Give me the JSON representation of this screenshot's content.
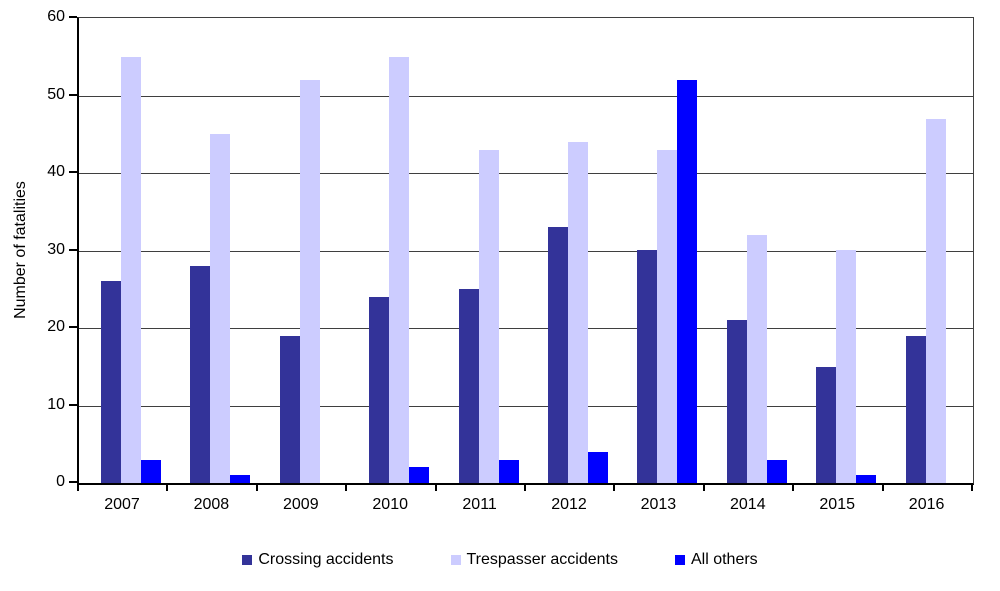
{
  "chart_data": {
    "type": "bar",
    "title": "",
    "xlabel": "",
    "ylabel": "Number of fatalities",
    "ylim": [
      0,
      60
    ],
    "yticks": [
      0,
      10,
      20,
      30,
      40,
      50,
      60
    ],
    "grid": true,
    "legend_position": "bottom",
    "categories": [
      "2007",
      "2008",
      "2009",
      "2010",
      "2011",
      "2012",
      "2013",
      "2014",
      "2015",
      "2016"
    ],
    "series": [
      {
        "name": "Crossing accidents",
        "color": "#333399",
        "values": [
          26,
          28,
          19,
          24,
          25,
          33,
          30,
          21,
          15,
          19
        ]
      },
      {
        "name": "Trespasser accidents",
        "color": "#ccccff",
        "values": [
          55,
          45,
          52,
          55,
          43,
          44,
          43,
          32,
          30,
          47
        ]
      },
      {
        "name": "All others",
        "color": "#0000ff",
        "values": [
          3,
          1,
          0,
          2,
          3,
          4,
          52,
          3,
          1,
          0
        ]
      }
    ],
    "colors": {
      "axis": "#000000",
      "gridline": "#3f3f3f",
      "background": "#ffffff",
      "text": "#000000"
    }
  }
}
